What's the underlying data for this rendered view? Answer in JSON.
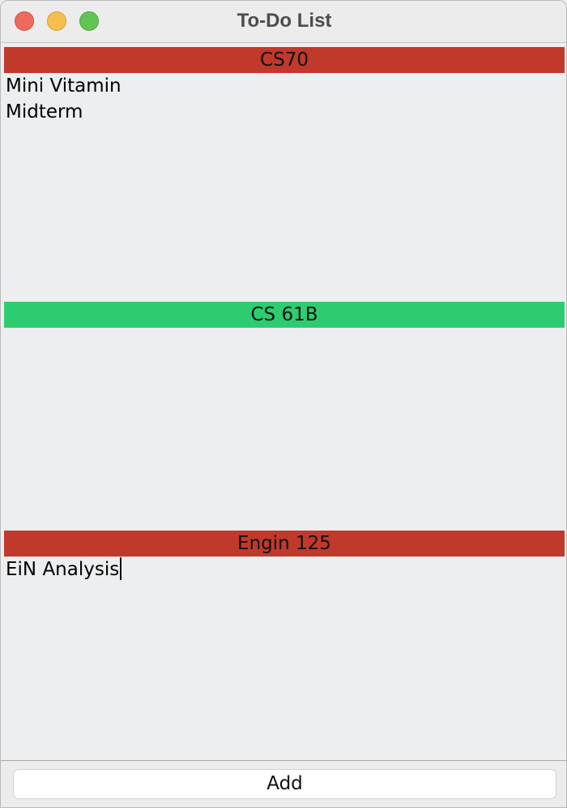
{
  "window": {
    "title": "To-Do List"
  },
  "sections": [
    {
      "name": "CS70",
      "status_color": "#c0392b",
      "tasks": [
        "Mini Vitamin",
        "Midterm"
      ]
    },
    {
      "name": "CS 61B",
      "status_color": "#2ecc71",
      "tasks": []
    },
    {
      "name": "Engin 125",
      "status_color": "#c0392b",
      "tasks": [
        "EiN Analysis"
      ]
    }
  ],
  "footer": {
    "add_label": "Add"
  }
}
